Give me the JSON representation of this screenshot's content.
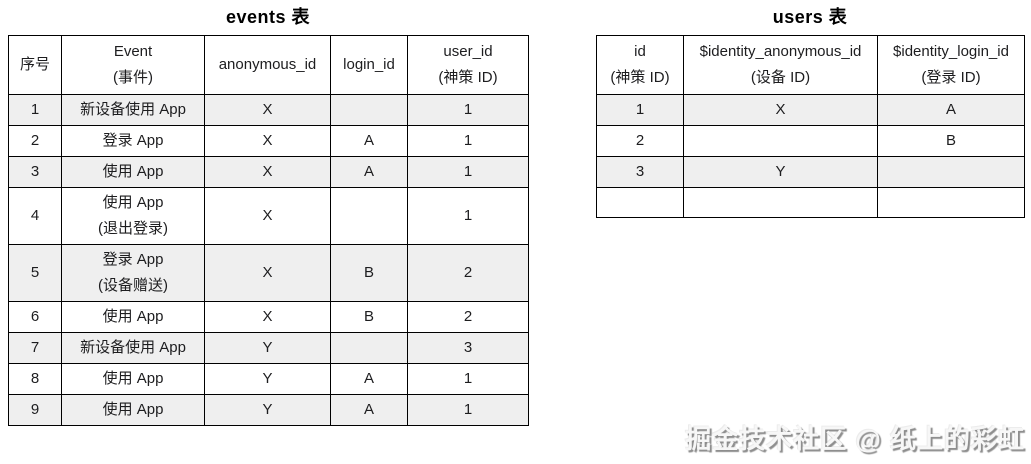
{
  "colors": {
    "border": "#000000",
    "stripe": "#efefef",
    "text": "#1d1d1f",
    "bg": "#ffffff"
  },
  "events_table": {
    "title": "events 表",
    "headers": [
      [
        "序号"
      ],
      [
        "Event",
        "(事件)"
      ],
      [
        "anonymous_id"
      ],
      [
        "login_id"
      ],
      [
        "user_id",
        "(神策 ID)"
      ]
    ],
    "rows": [
      {
        "shaded": true,
        "cells": [
          [
            "1"
          ],
          [
            "新设备使用 App"
          ],
          [
            "X"
          ],
          [],
          [
            "1"
          ]
        ]
      },
      {
        "shaded": false,
        "cells": [
          [
            "2"
          ],
          [
            "登录 App"
          ],
          [
            "X"
          ],
          [
            "A"
          ],
          [
            "1"
          ]
        ]
      },
      {
        "shaded": true,
        "cells": [
          [
            "3"
          ],
          [
            "使用 App"
          ],
          [
            "X"
          ],
          [
            "A"
          ],
          [
            "1"
          ]
        ]
      },
      {
        "shaded": false,
        "cells": [
          [
            "4"
          ],
          [
            "使用 App",
            "(退出登录)"
          ],
          [
            "X"
          ],
          [],
          [
            "1"
          ]
        ]
      },
      {
        "shaded": true,
        "cells": [
          [
            "5"
          ],
          [
            "登录 App",
            "(设备赠送)"
          ],
          [
            "X"
          ],
          [
            "B"
          ],
          [
            "2"
          ]
        ]
      },
      {
        "shaded": false,
        "cells": [
          [
            "6"
          ],
          [
            "使用 App"
          ],
          [
            "X"
          ],
          [
            "B"
          ],
          [
            "2"
          ]
        ]
      },
      {
        "shaded": true,
        "cells": [
          [
            "7"
          ],
          [
            "新设备使用 App"
          ],
          [
            "Y"
          ],
          [],
          [
            "3"
          ]
        ]
      },
      {
        "shaded": false,
        "cells": [
          [
            "8"
          ],
          [
            "使用 App"
          ],
          [
            "Y"
          ],
          [
            "A"
          ],
          [
            "1"
          ]
        ]
      },
      {
        "shaded": true,
        "cells": [
          [
            "9"
          ],
          [
            "使用 App"
          ],
          [
            "Y"
          ],
          [
            "A"
          ],
          [
            "1"
          ]
        ]
      }
    ]
  },
  "users_table": {
    "title": "users 表",
    "headers": [
      [
        "id",
        "(神策 ID)"
      ],
      [
        "$identity_anonymous_id",
        "(设备 ID)"
      ],
      [
        "$identity_login_id",
        "(登录 ID)"
      ]
    ],
    "rows": [
      {
        "shaded": true,
        "cells": [
          [
            "1"
          ],
          [
            "X"
          ],
          [
            "A"
          ]
        ]
      },
      {
        "shaded": false,
        "cells": [
          [
            "2"
          ],
          [],
          [
            "B"
          ]
        ]
      },
      {
        "shaded": true,
        "cells": [
          [
            "3"
          ],
          [
            "Y"
          ],
          []
        ]
      },
      {
        "shaded": false,
        "cells": [
          [],
          [],
          []
        ]
      }
    ]
  },
  "watermark": {
    "text": "掘金技术社区 @ 纸上的彩虹"
  }
}
